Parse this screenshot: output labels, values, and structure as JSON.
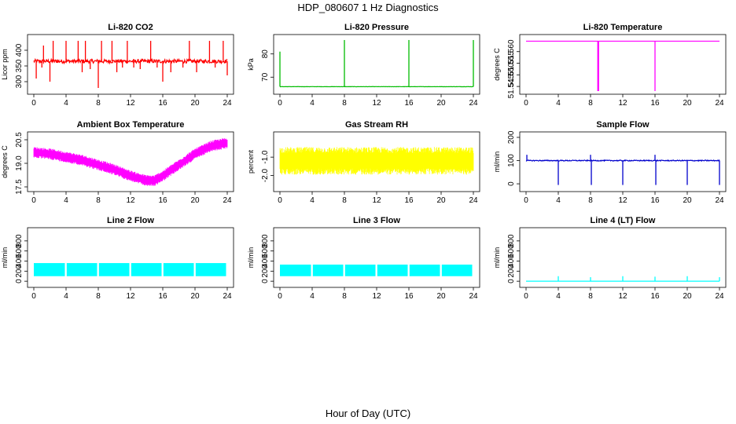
{
  "figure": {
    "title": "HDP_080607  1 Hz Diagnostics",
    "xlabel": "Hour of Day (UTC)"
  },
  "chart_data": [
    {
      "type": "line",
      "title": "Li-820 CO2",
      "ylabel": "Licor ppm",
      "xlim": [
        0,
        24
      ],
      "ylim": [
        270,
        440
      ],
      "xticks": [
        "0",
        "4",
        "8",
        "12",
        "16",
        "20",
        "24"
      ],
      "yticks": [
        "300",
        "350",
        "400"
      ],
      "color": "#ff0000",
      "series": [
        {
          "baseline": 365,
          "noise": 6,
          "spikes": [
            {
              "x": 0.3,
              "y": 310
            },
            {
              "x": 1.0,
              "y": 345
            },
            {
              "x": 1.2,
              "y": 415
            },
            {
              "x": 2.0,
              "y": 300
            },
            {
              "x": 2.4,
              "y": 430
            },
            {
              "x": 4.0,
              "y": 430
            },
            {
              "x": 5.5,
              "y": 430
            },
            {
              "x": 6.0,
              "y": 330
            },
            {
              "x": 6.4,
              "y": 430
            },
            {
              "x": 7.0,
              "y": 340
            },
            {
              "x": 8.0,
              "y": 280
            },
            {
              "x": 8.4,
              "y": 430
            },
            {
              "x": 9.7,
              "y": 430
            },
            {
              "x": 10.3,
              "y": 330
            },
            {
              "x": 11.0,
              "y": 345
            },
            {
              "x": 11.6,
              "y": 430
            },
            {
              "x": 12.4,
              "y": 345
            },
            {
              "x": 13.2,
              "y": 340
            },
            {
              "x": 14.5,
              "y": 430
            },
            {
              "x": 15.3,
              "y": 345
            },
            {
              "x": 16.0,
              "y": 300
            },
            {
              "x": 17.0,
              "y": 330
            },
            {
              "x": 18.5,
              "y": 345
            },
            {
              "x": 19.3,
              "y": 430
            },
            {
              "x": 20.2,
              "y": 330
            },
            {
              "x": 21.8,
              "y": 430
            },
            {
              "x": 22.5,
              "y": 345
            },
            {
              "x": 23.5,
              "y": 430
            },
            {
              "x": 24.0,
              "y": 320
            }
          ]
        }
      ]
    },
    {
      "type": "line",
      "title": "Li-820 Pressure",
      "ylabel": "kPa",
      "xlim": [
        0,
        24
      ],
      "ylim": [
        64,
        87
      ],
      "xticks": [
        "0",
        "4",
        "8",
        "12",
        "16",
        "20",
        "24"
      ],
      "yticks": [
        "70",
        "80"
      ],
      "color": "#00bb00",
      "series": [
        {
          "baseline": 65.9,
          "noise": 0.05,
          "spikes": [
            {
              "x": 0.0,
              "y": 81
            },
            {
              "x": 8.0,
              "y": 86
            },
            {
              "x": 16.0,
              "y": 86
            },
            {
              "x": 24.0,
              "y": 86
            }
          ]
        }
      ]
    },
    {
      "type": "line",
      "title": "Li-820 Temperature",
      "ylabel": "degrees C",
      "xlim": [
        0,
        24
      ],
      "ylim": [
        51.543,
        51.566
      ],
      "xticks": [
        "0",
        "4",
        "8",
        "12",
        "16",
        "20",
        "24"
      ],
      "yticks": [
        "51.545",
        "51.550",
        "51.555",
        "51.560"
      ],
      "color": "#ff00ff",
      "series": [
        {
          "baseline": 51.5645,
          "noise": 0,
          "spikes": [
            {
              "x": 8.9,
              "y": 51.543
            },
            {
              "x": 9.0,
              "y": 51.543
            },
            {
              "x": 16.0,
              "y": 51.543
            }
          ]
        }
      ]
    },
    {
      "type": "line",
      "title": "Ambient Box Temperature",
      "ylabel": "degrees C",
      "xlim": [
        0,
        24
      ],
      "ylim": [
        17.4,
        20.8
      ],
      "xticks": [
        "0",
        "4",
        "8",
        "12",
        "16",
        "20",
        "24"
      ],
      "yticks": [
        "17.5",
        "19.0",
        "20.5"
      ],
      "color": "#ff00ff",
      "series": [
        {
          "x": [
            0,
            2,
            4,
            6,
            8,
            10,
            12,
            14,
            15,
            16,
            18,
            20,
            22,
            24
          ],
          "y": [
            19.7,
            19.6,
            19.4,
            19.2,
            18.9,
            18.6,
            18.2,
            17.9,
            17.9,
            18.2,
            18.9,
            19.6,
            20.1,
            20.3
          ],
          "band": 0.35
        }
      ]
    },
    {
      "type": "line",
      "title": "Gas Stream RH",
      "ylabel": "percent",
      "xlim": [
        0,
        24
      ],
      "ylim": [
        -2.7,
        0.2
      ],
      "xticks": [
        "0",
        "4",
        "8",
        "12",
        "16",
        "20",
        "24"
      ],
      "yticks": [
        "-2.0",
        "-1.0"
      ],
      "color": "#ffff00",
      "series": [
        {
          "baseline": -1.2,
          "band": 0.75
        }
      ]
    },
    {
      "type": "line",
      "title": "Sample Flow",
      "ylabel": "ml/min",
      "xlim": [
        0,
        24
      ],
      "ylim": [
        -20,
        210
      ],
      "xticks": [
        "0",
        "4",
        "8",
        "12",
        "16",
        "20",
        "24"
      ],
      "yticks": [
        "0",
        "100",
        "200"
      ],
      "color": "#0000cc",
      "series": [
        {
          "baseline": 100,
          "noise": 2,
          "spikes": [
            {
              "x": 0.1,
              "y": 125
            },
            {
              "x": 4.0,
              "y": -5
            },
            {
              "x": 8.0,
              "y": 125
            },
            {
              "x": 8.1,
              "y": -5
            },
            {
              "x": 12.0,
              "y": -5
            },
            {
              "x": 16.0,
              "y": 125
            },
            {
              "x": 16.1,
              "y": -5
            },
            {
              "x": 20.0,
              "y": -5
            },
            {
              "x": 24.0,
              "y": -5
            }
          ]
        }
      ]
    },
    {
      "type": "area",
      "title": "Line 2 Flow",
      "ylabel": "ml/min",
      "xlim": [
        0,
        24
      ],
      "ylim": [
        -60,
        1000
      ],
      "xticks": [
        "0",
        "4",
        "8",
        "12",
        "16",
        "20",
        "24"
      ],
      "yticks": [
        "0",
        "200",
        "400",
        "600",
        "800"
      ],
      "color": "#00ffff",
      "series": [
        {
          "low": 100,
          "high": 360,
          "gaps": [
            4,
            8,
            12,
            16,
            20,
            24
          ]
        }
      ]
    },
    {
      "type": "area",
      "title": "Line 3 Flow",
      "ylabel": "ml/min",
      "xlim": [
        0,
        24
      ],
      "ylim": [
        -60,
        1000
      ],
      "xticks": [
        "0",
        "4",
        "8",
        "12",
        "16",
        "20",
        "24"
      ],
      "yticks": [
        "0",
        "200",
        "400",
        "600",
        "800"
      ],
      "color": "#00ffff",
      "series": [
        {
          "low": 100,
          "high": 330,
          "gaps": [
            4,
            8,
            12,
            16,
            20,
            24
          ]
        }
      ]
    },
    {
      "type": "line",
      "title": "Line 4 (LT) Flow",
      "ylabel": "ml/min",
      "xlim": [
        0,
        24
      ],
      "ylim": [
        -60,
        1000
      ],
      "xticks": [
        "0",
        "4",
        "8",
        "12",
        "16",
        "20",
        "24"
      ],
      "yticks": [
        "0",
        "200",
        "400",
        "600",
        "800"
      ],
      "color": "#00ffff",
      "series": [
        {
          "baseline": 0,
          "noise": 0,
          "spikes": [
            {
              "x": 4.0,
              "y": 100
            },
            {
              "x": 8.0,
              "y": 80
            },
            {
              "x": 12.0,
              "y": 100
            },
            {
              "x": 16.0,
              "y": 90
            },
            {
              "x": 20.0,
              "y": 100
            },
            {
              "x": 24.0,
              "y": 80
            }
          ]
        }
      ]
    }
  ]
}
